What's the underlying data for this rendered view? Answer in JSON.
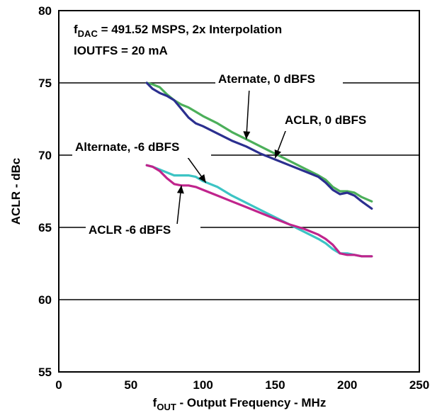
{
  "chart_data": {
    "type": "line",
    "title": "",
    "xlabel_main": "f",
    "xlabel_sub": "OUT",
    "xlabel_rest": " - Output Frequency - MHz",
    "ylabel": "ACLR - dBc",
    "xlim": [
      0,
      250
    ],
    "ylim": [
      55,
      80
    ],
    "x_ticks": [
      0,
      50,
      100,
      150,
      200,
      250
    ],
    "y_ticks": [
      55,
      60,
      65,
      70,
      75,
      80
    ],
    "grid": "horizontal-major",
    "conditions_line1_main": "f",
    "conditions_line1_sub": "DAC",
    "conditions_line1_rest": " = 491.52 MSPS, 2x Interpolation",
    "conditions_line2": "IOUTFS = 20 mA",
    "series": [
      {
        "name": "Aternate, 0 dBFS",
        "color": "#4caf5a",
        "x": [
          61,
          65,
          70,
          75,
          80,
          85,
          90,
          95,
          100,
          110,
          120,
          130,
          140,
          150,
          160,
          170,
          180,
          185,
          190,
          195,
          200,
          205,
          210,
          217
        ],
        "y": [
          75.0,
          74.9,
          74.7,
          74.2,
          73.8,
          73.5,
          73.3,
          73.0,
          72.7,
          72.2,
          71.6,
          71.1,
          70.6,
          70.1,
          69.6,
          69.1,
          68.6,
          68.3,
          67.8,
          67.5,
          67.5,
          67.4,
          67.1,
          66.8
        ]
      },
      {
        "name": "ACLR, 0 dBFS",
        "color": "#2b2f8f",
        "x": [
          61,
          65,
          70,
          75,
          80,
          85,
          90,
          95,
          100,
          110,
          120,
          130,
          140,
          150,
          160,
          170,
          180,
          185,
          190,
          195,
          200,
          205,
          210,
          217
        ],
        "y": [
          75.0,
          74.6,
          74.3,
          74.1,
          73.8,
          73.2,
          72.6,
          72.2,
          72.0,
          71.5,
          71.0,
          70.6,
          70.1,
          69.7,
          69.3,
          68.9,
          68.5,
          68.1,
          67.6,
          67.3,
          67.4,
          67.2,
          66.8,
          66.3
        ]
      },
      {
        "name": "Alternate, -6 dBFS",
        "color": "#3cc4c4",
        "x": [
          61,
          65,
          70,
          75,
          80,
          85,
          90,
          95,
          100,
          110,
          120,
          130,
          140,
          150,
          160,
          170,
          180,
          185,
          190,
          195,
          200,
          205,
          210,
          217
        ],
        "y": [
          69.3,
          69.2,
          69.0,
          68.8,
          68.6,
          68.6,
          68.6,
          68.5,
          68.2,
          67.8,
          67.2,
          66.7,
          66.2,
          65.7,
          65.2,
          64.7,
          64.2,
          63.9,
          63.5,
          63.2,
          63.2,
          63.1,
          63.0,
          63.0
        ]
      },
      {
        "name": "ACLR -6 dBFS",
        "color": "#c0248c",
        "x": [
          61,
          65,
          70,
          75,
          80,
          85,
          90,
          95,
          100,
          110,
          120,
          130,
          140,
          150,
          160,
          170,
          180,
          185,
          190,
          195,
          200,
          205,
          210,
          217
        ],
        "y": [
          69.3,
          69.2,
          68.9,
          68.4,
          68.0,
          67.9,
          67.9,
          67.8,
          67.6,
          67.2,
          66.8,
          66.4,
          66.0,
          65.6,
          65.2,
          64.9,
          64.5,
          64.2,
          63.8,
          63.2,
          63.1,
          63.1,
          63.0,
          63.0
        ]
      }
    ],
    "annotations": [
      {
        "text": "Aternate, 0 dBFS",
        "series": 0,
        "point_x": 130,
        "point_y": 71.1
      },
      {
        "text": "ACLR, 0 dBFS",
        "series": 1,
        "point_x": 150,
        "point_y": 69.8
      },
      {
        "text": "Alternate, -6 dBFS",
        "series": 2,
        "point_x": 102,
        "point_y": 68.1
      },
      {
        "text": "ACLR -6 dBFS",
        "series": 3,
        "point_x": 85,
        "point_y": 67.9
      }
    ]
  }
}
